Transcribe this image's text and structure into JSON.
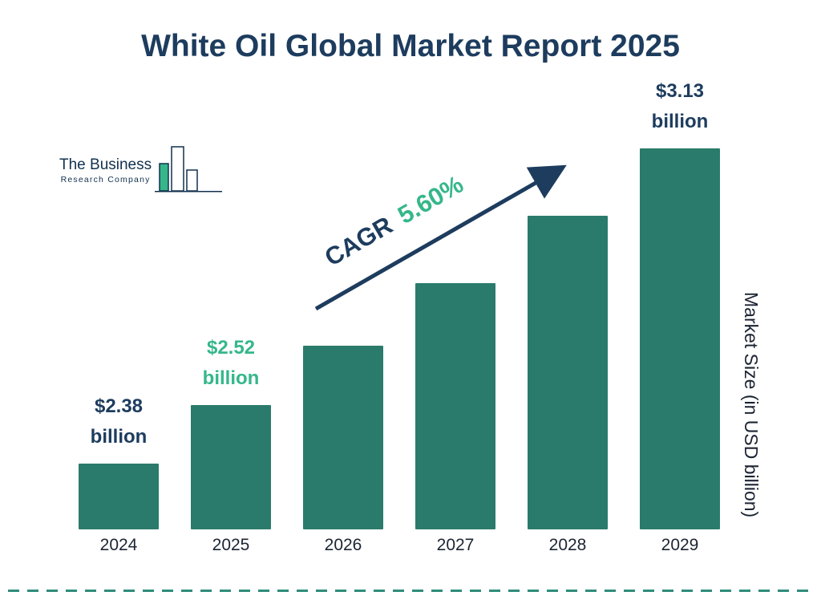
{
  "title": "White Oil Global Market Report 2025",
  "logo": {
    "line1": "The Business",
    "line2": "Research Company"
  },
  "cagr": {
    "prefix": "CAGR",
    "value": "5.60%"
  },
  "colors": {
    "bar": "#2a7b6b",
    "navy": "#1d3c5e",
    "green": "#35b78a",
    "dark": "#1c2433",
    "divider": "#2f8d7b"
  },
  "chart_data": {
    "type": "bar",
    "title": "White Oil Global Market Report 2025",
    "categories": [
      "2024",
      "2025",
      "2026",
      "2027",
      "2028",
      "2029"
    ],
    "values": [
      2.38,
      2.52,
      2.66,
      2.81,
      2.97,
      3.13
    ],
    "value_unit": "USD billion",
    "bar_labels": [
      {
        "lines": [
          "$2.38",
          "billion"
        ],
        "color": "navy"
      },
      {
        "lines": [
          "$2.52",
          "billion"
        ],
        "color": "green"
      },
      null,
      null,
      null,
      {
        "lines": [
          "$3.13",
          "billion"
        ],
        "color": "navy"
      }
    ],
    "annotation": "CAGR 5.60%",
    "xlabel": "",
    "ylabel": "Market Size (in USD billion)",
    "ylim": [
      0,
      3.5
    ],
    "grid": false,
    "legend": false
  }
}
